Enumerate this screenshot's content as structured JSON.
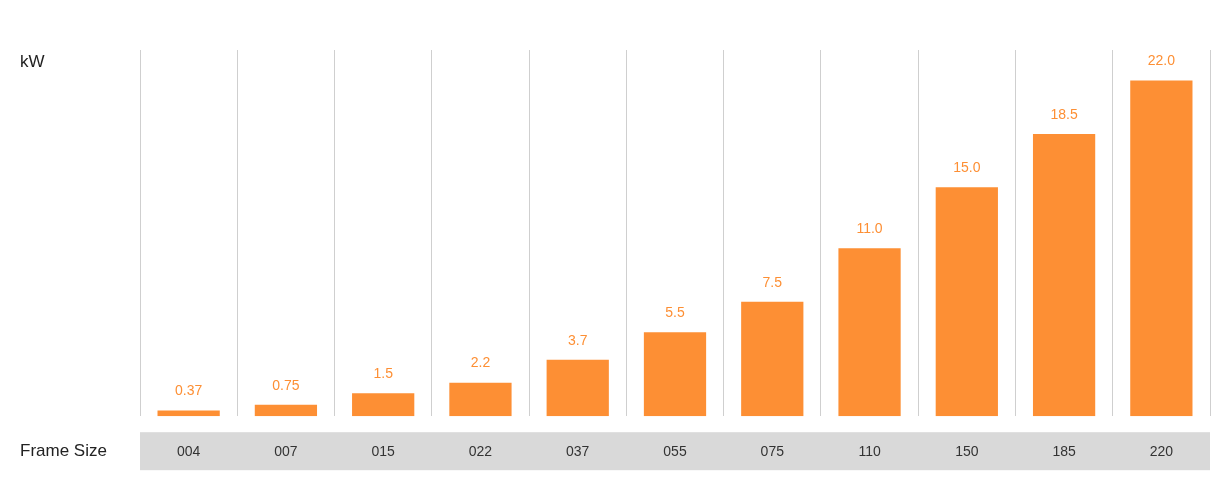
{
  "chart_data": {
    "type": "bar",
    "y_label": "kW",
    "x_label": "Frame Size",
    "categories": [
      "004",
      "007",
      "015",
      "022",
      "037",
      "055",
      "075",
      "110",
      "150",
      "185",
      "220"
    ],
    "values": [
      0.37,
      0.75,
      1.5,
      2.2,
      3.7,
      5.5,
      7.5,
      11.0,
      15.0,
      18.5,
      22.0
    ],
    "value_labels": [
      "0.37",
      "0.75",
      "1.5",
      "2.2",
      "3.7",
      "5.5",
      "7.5",
      "11.0",
      "15.0",
      "18.5",
      "22.0"
    ],
    "color": "#fd8f34",
    "ylim": [
      0,
      24
    ],
    "grid": true,
    "data_labels": true,
    "tick_labels": "x"
  }
}
